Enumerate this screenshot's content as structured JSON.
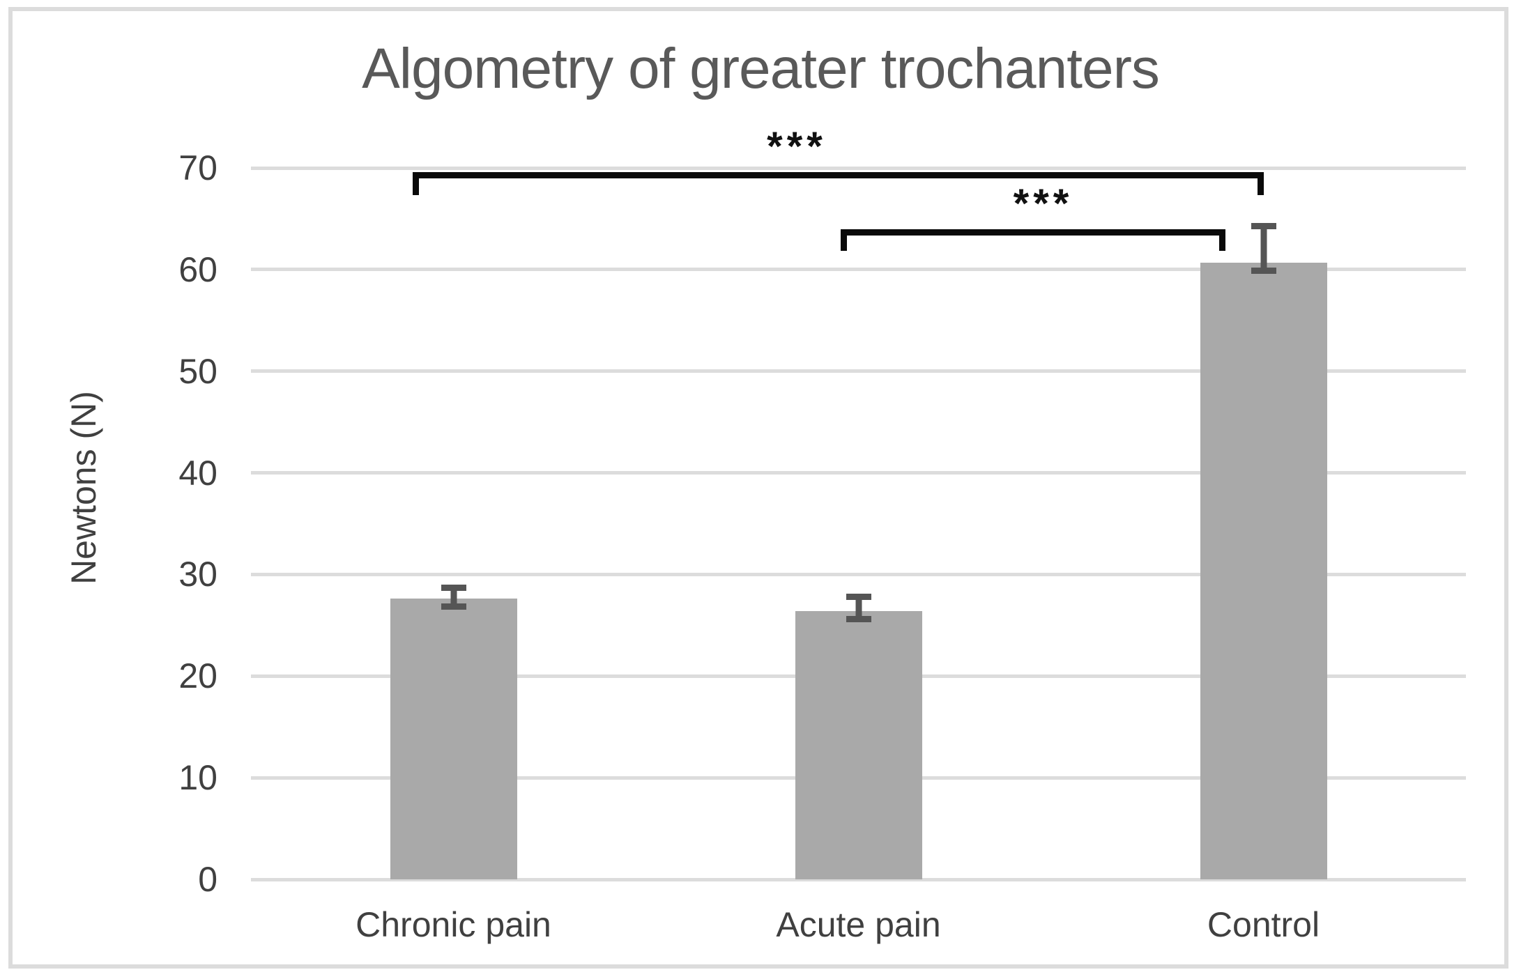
{
  "figure": {
    "title": "Algometry of greater trochanters",
    "y_axis_title": "Newtons (N)"
  },
  "chart_data": {
    "type": "bar",
    "title": "Algometry of greater trochanters",
    "xlabel": "",
    "ylabel": "Newtons (N)",
    "categories": [
      "Chronic pain",
      "Acute pain",
      "Control"
    ],
    "values": [
      27.6,
      26.4,
      60.7
    ],
    "error_bars": [
      {
        "low": 26.5,
        "high": 29.0
      },
      {
        "low": 25.3,
        "high": 28.1
      },
      {
        "low": 59.6,
        "high": 64.6
      }
    ],
    "ylim": [
      0,
      70
    ],
    "yticks": [
      0,
      10,
      20,
      30,
      40,
      50,
      60,
      70
    ],
    "grid": true,
    "legend_position": "none",
    "bar_color": "#a9a9a9",
    "error_bar_color": "#555555",
    "gridline_color": "#dcdcdc",
    "significance_brackets": [
      {
        "label": "***",
        "from": "Chronic pain",
        "to": "Control",
        "height_n": 69.6
      },
      {
        "label": "***",
        "from": "Acute pain",
        "to": "Control",
        "height_n": 64.0
      }
    ]
  }
}
